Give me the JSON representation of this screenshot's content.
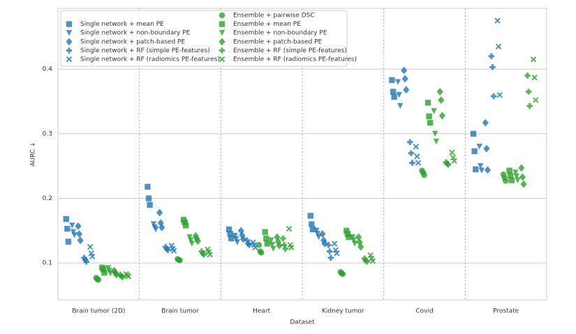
{
  "chart_data": {
    "type": "strip",
    "x_label": "Dataset",
    "y_label": "AURC ↓",
    "categories": [
      "Brain tumor (2D)",
      "Brain tumor",
      "Heart",
      "Kidney tumor",
      "Covid",
      "Prostate"
    ],
    "ylim": [
      0.043,
      0.494
    ],
    "yticks": [
      0.1,
      0.2,
      0.3,
      0.4
    ],
    "grid": true,
    "legend": "upper left",
    "series": [
      {
        "name": "Single network + mean PE",
        "color": "#1f77b4",
        "marker": "square",
        "values": [
          [
            0.168,
            0.153,
            0.133
          ],
          [
            0.218,
            0.2,
            0.19
          ],
          [
            0.152,
            0.145,
            0.138
          ],
          [
            0.173,
            0.16,
            0.152
          ],
          [
            0.383,
            0.365,
            0.357
          ],
          [
            0.3,
            0.273,
            0.245
          ]
        ]
      },
      {
        "name": "Single network + non-boundary PE",
        "color": "#1f77b4",
        "marker": "triangle_down",
        "values": [
          [
            0.158,
            0.148,
            0.143
          ],
          [
            0.16,
            0.155,
            0.152
          ],
          [
            0.142,
            0.137,
            0.132
          ],
          [
            0.15,
            0.145,
            0.14
          ],
          [
            0.38,
            0.36,
            0.343
          ],
          [
            0.28,
            0.25,
            0.243
          ]
        ]
      },
      {
        "name": "Single network + patch-based PE",
        "color": "#1f77b4",
        "marker": "diamond",
        "values": [
          [
            0.157,
            0.145,
            0.135
          ],
          [
            0.178,
            0.162,
            0.155
          ],
          [
            0.15,
            0.143,
            0.137
          ],
          [
            0.145,
            0.135,
            0.13
          ],
          [
            0.398,
            0.385,
            0.368
          ],
          [
            0.317,
            0.277,
            0.244
          ]
        ]
      },
      {
        "name": "Single network + RF (simple PE-features)",
        "color": "#1f77b4",
        "marker": "plus",
        "values": [
          [
            0.108,
            0.105,
            0.102
          ],
          [
            0.125,
            0.122,
            0.12
          ],
          [
            0.135,
            0.13,
            0.128
          ],
          [
            0.128,
            0.118,
            0.108
          ],
          [
            0.287,
            0.27,
            0.255
          ],
          [
            0.42,
            0.403,
            0.358
          ]
        ]
      },
      {
        "name": "Single network + RF (radiomics PE-features)",
        "color": "#1f77b4",
        "marker": "x",
        "values": [
          [
            0.125,
            0.115,
            0.11
          ],
          [
            0.127,
            0.122,
            0.119
          ],
          [
            0.132,
            0.128,
            0.124
          ],
          [
            0.13,
            0.12,
            0.115
          ],
          [
            0.28,
            0.265,
            0.255
          ],
          [
            0.475,
            0.435,
            0.36
          ]
        ]
      },
      {
        "name": "Ensemble + pairwise DSC",
        "color": "#2ca02c",
        "marker": "circle",
        "values": [
          [
            0.077,
            0.075,
            0.074
          ],
          [
            0.106,
            0.105,
            0.104
          ],
          [
            0.128,
            0.118,
            0.116
          ],
          [
            0.086,
            0.084,
            0.083
          ],
          [
            0.243,
            0.24,
            0.236
          ],
          [
            0.237,
            0.232,
            0.227
          ]
        ]
      },
      {
        "name": "Ensemble + mean PE",
        "color": "#2ca02c",
        "marker": "square",
        "values": [
          [
            0.093,
            0.09,
            0.085
          ],
          [
            0.167,
            0.163,
            0.158
          ],
          [
            0.148,
            0.138,
            0.13
          ],
          [
            0.15,
            0.145,
            0.14
          ],
          [
            0.348,
            0.327,
            0.317
          ],
          [
            0.243,
            0.235,
            0.228
          ]
        ]
      },
      {
        "name": "Ensemble + non-boundary PE",
        "color": "#2ca02c",
        "marker": "triangle_down",
        "values": [
          [
            0.092,
            0.088,
            0.084
          ],
          [
            0.14,
            0.135,
            0.13
          ],
          [
            0.135,
            0.128,
            0.122
          ],
          [
            0.14,
            0.135,
            0.13
          ],
          [
            0.335,
            0.3,
            0.288
          ],
          [
            0.24,
            0.234,
            0.228
          ]
        ]
      },
      {
        "name": "Ensemble + patch-based PE",
        "color": "#2ca02c",
        "marker": "diamond",
        "values": [
          [
            0.088,
            0.085,
            0.082
          ],
          [
            0.142,
            0.138,
            0.134
          ],
          [
            0.14,
            0.133,
            0.127
          ],
          [
            0.14,
            0.132,
            0.125
          ],
          [
            0.365,
            0.352,
            0.328
          ],
          [
            0.247,
            0.233,
            0.222
          ]
        ]
      },
      {
        "name": "Ensemble + RF (simple PE-features)",
        "color": "#2ca02c",
        "marker": "plus",
        "values": [
          [
            0.082,
            0.08,
            0.078
          ],
          [
            0.118,
            0.115,
            0.113
          ],
          [
            0.138,
            0.128,
            0.122
          ],
          [
            0.107,
            0.104,
            0.102
          ],
          [
            0.256,
            0.254,
            0.252
          ],
          [
            0.39,
            0.365,
            0.343
          ]
        ]
      },
      {
        "name": "Ensemble + RF (radiomics PE-features)",
        "color": "#2ca02c",
        "marker": "x",
        "values": [
          [
            0.083,
            0.081,
            0.079
          ],
          [
            0.121,
            0.117,
            0.113
          ],
          [
            0.153,
            0.128,
            0.124
          ],
          [
            0.112,
            0.107,
            0.103
          ],
          [
            0.271,
            0.263,
            0.258
          ],
          [
            0.415,
            0.387,
            0.352
          ]
        ]
      }
    ]
  }
}
